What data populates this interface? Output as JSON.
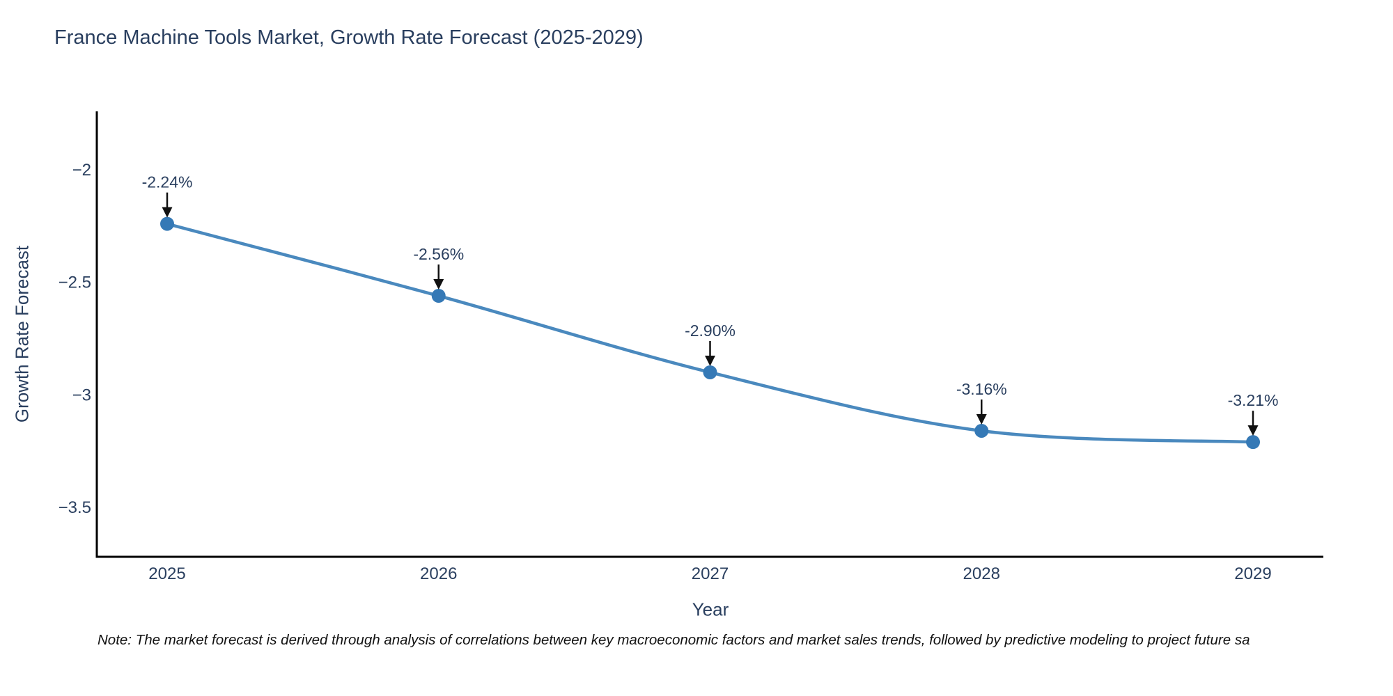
{
  "title": "France Machine Tools Market, Growth Rate Forecast (2025-2029)",
  "note": "Note: The market forecast is derived through analysis of correlations between key macroeconomic factors and market sales trends, followed by predictive modeling to project future sa",
  "colors": {
    "line": "#4a89be",
    "marker": "#3579b6",
    "axis": "#000000",
    "text": "#2a3f5f",
    "arrow": "#111111",
    "note_text": "#111111",
    "background": "#ffffff"
  },
  "chart_data": {
    "type": "line",
    "title": "France Machine Tools Market, Growth Rate Forecast (2025-2029)",
    "categories": [
      "2025",
      "2026",
      "2027",
      "2028",
      "2029"
    ],
    "values": [
      -2.24,
      -2.56,
      -2.9,
      -3.16,
      -3.21
    ],
    "point_labels": [
      "-2.24%",
      "-2.56%",
      "-2.90%",
      "-3.16%",
      "-3.21%"
    ],
    "xlabel": "Year",
    "ylabel": "Growth Rate Forecast",
    "yticks": [
      -2,
      -2.5,
      -3,
      -3.5
    ],
    "ytick_labels": [
      "−2",
      "−2.5",
      "−3",
      "−3.5"
    ],
    "ylim": [
      -3.72,
      -1.74
    ],
    "grid": false,
    "legend": false,
    "line_shape": "spline",
    "markers": true,
    "annotations": "value labels with black arrows pointing down to each data point"
  }
}
